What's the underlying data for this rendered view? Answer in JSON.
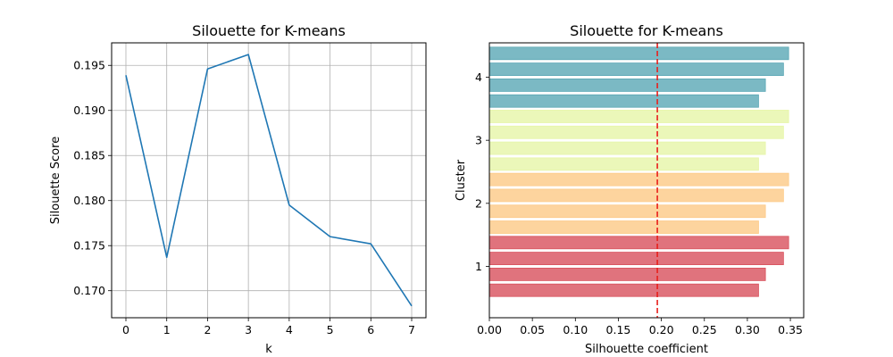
{
  "chart_data": [
    {
      "type": "line",
      "title": "Silouette for K-means",
      "xlabel": "k",
      "ylabel": "Silouette Score",
      "x": [
        0,
        1,
        2,
        3,
        4,
        5,
        6,
        7
      ],
      "series": [
        {
          "values": [
            0.1939,
            0.1737,
            0.1946,
            0.1962,
            0.1795,
            0.176,
            0.1752,
            0.1683
          ]
        }
      ],
      "xlim": [
        -0.35,
        7.35
      ],
      "ylim": [
        0.167,
        0.1975
      ],
      "xticks": [
        0,
        1,
        2,
        3,
        4,
        5,
        6,
        7
      ],
      "xtick_labels": [
        "0",
        "1",
        "2",
        "3",
        "4",
        "5",
        "6",
        "7"
      ],
      "yticks": [
        0.17,
        0.175,
        0.18,
        0.185,
        0.19,
        0.195
      ],
      "ytick_labels": [
        "0.170",
        "0.175",
        "0.180",
        "0.185",
        "0.190",
        "0.195"
      ],
      "grid": true,
      "colors": {
        "line": "#1f77b4",
        "grid": "#b0b0b0"
      }
    },
    {
      "type": "bar",
      "orientation": "horizontal",
      "title": "Silouette for K-means",
      "xlabel": "Silhouette coefficient",
      "ylabel": "Cluster",
      "clusters": [
        {
          "cluster": 1,
          "values": [
            0.313,
            0.321,
            0.342,
            0.348
          ],
          "color": "#d8505c"
        },
        {
          "cluster": 2,
          "values": [
            0.313,
            0.321,
            0.342,
            0.348
          ],
          "color": "#fdc986"
        },
        {
          "cluster": 3,
          "values": [
            0.313,
            0.321,
            0.342,
            0.348
          ],
          "color": "#e6f5a7"
        },
        {
          "cluster": 4,
          "values": [
            0.313,
            0.321,
            0.342,
            0.348
          ],
          "color": "#5aa7b5"
        }
      ],
      "average_line": {
        "value": 0.1953,
        "color": "#e8201c",
        "style": "dashed"
      },
      "xlim": [
        0,
        0.3655
      ],
      "xticks": [
        0,
        0.05,
        0.1,
        0.15,
        0.2,
        0.25,
        0.3,
        0.35
      ],
      "xtick_labels": [
        "0.00",
        "0.05",
        "0.10",
        "0.15",
        "0.20",
        "0.25",
        "0.30",
        "0.35"
      ],
      "yticks": [
        1,
        2,
        3,
        4
      ],
      "ytick_labels": [
        "1",
        "2",
        "3",
        "4"
      ],
      "grid": false
    }
  ]
}
